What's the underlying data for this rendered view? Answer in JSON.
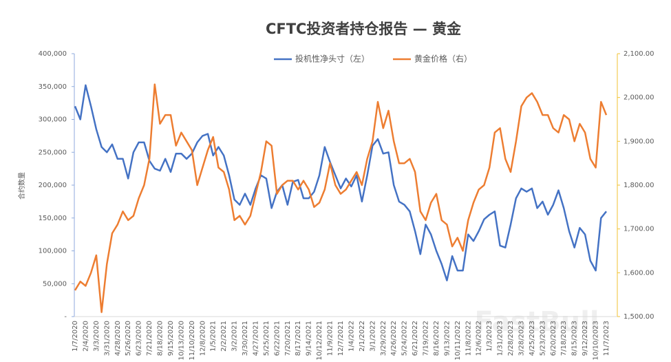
{
  "chart_data": {
    "type": "line",
    "title": "CFTC投资者持仓报告 — 黄金",
    "y_label": "合约数量",
    "watermark": "FastBull",
    "categories": [
      "1/7/2020",
      null,
      "2/4/2020",
      null,
      "3/3/2020",
      null,
      "3/31/2020",
      null,
      "4/28/2020",
      null,
      "5/26/2020",
      null,
      "6/23/2020",
      null,
      "7/21/2020",
      null,
      "8/18/2020",
      null,
      "9/15/2020",
      null,
      "10/13/2020",
      null,
      "11/10/2020",
      null,
      "12/8/2020",
      null,
      "1/5/2021",
      null,
      "2/2/2021",
      null,
      "3/2/2021",
      null,
      "3/30/2021",
      null,
      "4/27/2021",
      null,
      "5/25/2021",
      null,
      "6/22/2021",
      null,
      "7/20/2021",
      null,
      "8/17/2021",
      null,
      "9/14/2021",
      null,
      "10/12/2021",
      null,
      "11/9/2021",
      null,
      "12/7/2021",
      null,
      "1/4/2022",
      null,
      "2/1/2022",
      null,
      "3/1/2022",
      null,
      "3/29/2022",
      null,
      "4/26/2022",
      null,
      "5/24/2022",
      null,
      "6/21/2022",
      null,
      "7/19/2022",
      null,
      "8/16/2022",
      null,
      "9/13/2022",
      null,
      "10/11/2022",
      null,
      "11/8/2022",
      null,
      "12/6/2022",
      null,
      "1/3/2023",
      null,
      "1/31/2023",
      null,
      "2/28/2023",
      null,
      "3/28/2023",
      null,
      "4/25/2023",
      null,
      "5/23/2023",
      null,
      "6/20/2023",
      null,
      "7/18/2023",
      null,
      "8/15/2023",
      null,
      "9/12/2023",
      null,
      "10/10/2023",
      null,
      "11/7/2023"
    ],
    "series": [
      {
        "name": "投机性净头寸（左）",
        "color": "#4472c4",
        "axis": "y",
        "values": [
          320000,
          300000,
          352000,
          320000,
          285000,
          258000,
          250000,
          262000,
          240000,
          240000,
          210000,
          250000,
          265000,
          265000,
          237000,
          225000,
          222000,
          240000,
          220000,
          248000,
          248000,
          240000,
          248000,
          265000,
          275000,
          278000,
          245000,
          258000,
          245000,
          215000,
          178000,
          170000,
          187000,
          170000,
          195000,
          215000,
          210000,
          165000,
          190000,
          200000,
          170000,
          205000,
          208000,
          180000,
          180000,
          190000,
          215000,
          258000,
          235000,
          215000,
          195000,
          210000,
          198000,
          215000,
          175000,
          215000,
          260000,
          270000,
          248000,
          250000,
          200000,
          175000,
          170000,
          160000,
          130000,
          95000,
          140000,
          125000,
          100000,
          80000,
          55000,
          92000,
          70000,
          70000,
          125000,
          115000,
          130000,
          148000,
          155000,
          160000,
          108000,
          105000,
          140000,
          180000,
          195000,
          190000,
          195000,
          165000,
          175000,
          155000,
          170000,
          192000,
          165000,
          130000,
          105000,
          135000,
          125000,
          85000,
          70000,
          150000,
          160000
        ]
      },
      {
        "name": "黄金价格（右）",
        "color": "#ed7d31",
        "axis": "y2",
        "values": [
          1560,
          1580,
          1570,
          1600,
          1640,
          1510,
          1620,
          1690,
          1710,
          1740,
          1720,
          1730,
          1770,
          1800,
          1860,
          2030,
          1940,
          1960,
          1960,
          1890,
          1920,
          1900,
          1880,
          1800,
          1840,
          1880,
          1910,
          1840,
          1830,
          1790,
          1720,
          1730,
          1710,
          1730,
          1780,
          1830,
          1900,
          1890,
          1780,
          1800,
          1810,
          1810,
          1790,
          1810,
          1790,
          1750,
          1760,
          1790,
          1850,
          1800,
          1780,
          1790,
          1810,
          1830,
          1800,
          1860,
          1900,
          1990,
          1930,
          1970,
          1900,
          1850,
          1850,
          1860,
          1830,
          1740,
          1720,
          1760,
          1780,
          1720,
          1710,
          1660,
          1680,
          1650,
          1720,
          1760,
          1790,
          1800,
          1840,
          1920,
          1930,
          1860,
          1830,
          1900,
          1980,
          2000,
          2010,
          1990,
          1960,
          1960,
          1930,
          1920,
          1960,
          1950,
          1900,
          1940,
          1920,
          1860,
          1840,
          1990,
          1960
        ]
      }
    ],
    "ylim": [
      0,
      400000
    ],
    "yticks": [
      {
        "value": 0,
        "label": "-"
      },
      {
        "value": 50000,
        "label": "50,000"
      },
      {
        "value": 100000,
        "label": "100,000"
      },
      {
        "value": 150000,
        "label": "150,000"
      },
      {
        "value": 200000,
        "label": "200,000"
      },
      {
        "value": 250000,
        "label": "250,000"
      },
      {
        "value": 300000,
        "label": "300,000"
      },
      {
        "value": 350000,
        "label": "350,000"
      },
      {
        "value": 400000,
        "label": "400,000"
      }
    ],
    "y2lim": [
      1500,
      2100
    ],
    "y2ticks": [
      {
        "value": 1500,
        "label": "1,500.00"
      },
      {
        "value": 1600,
        "label": "1,600.00"
      },
      {
        "value": 1700,
        "label": "1,700.00"
      },
      {
        "value": 1800,
        "label": "1,800.00"
      },
      {
        "value": 1900,
        "label": "1,900.00"
      },
      {
        "value": 2000,
        "label": "2,000.00"
      },
      {
        "value": 2100,
        "label": "2,100.00"
      }
    ],
    "grid": false,
    "legend": "top"
  }
}
